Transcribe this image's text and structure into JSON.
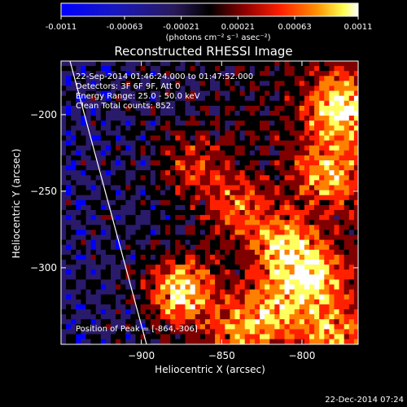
{
  "colorbar": {
    "tick_labels": [
      "-0.0011",
      "-0.00063",
      "-0.00021",
      "0.00021",
      "0.00063",
      "0.0011"
    ],
    "tick_values": [
      -0.0011,
      -0.00063,
      -0.00021,
      0.00021,
      0.00063,
      0.0011
    ],
    "range": [
      -0.0011,
      0.0011
    ],
    "units_label": "(photons cm⁻² s⁻¹ asec⁻²)",
    "colors": [
      "#0000ff",
      "#2a1a6a",
      "#000000",
      "#800000",
      "#ff2000",
      "#ff8000",
      "#ffff60",
      "#ffffff"
    ]
  },
  "chart_data": {
    "type": "heatmap",
    "title": "Reconstructed RHESSI Image",
    "xlabel": "Heliocentric X (arcsec)",
    "ylabel": "Heliocentric Y (arcsec)",
    "xlim": [
      -950,
      -765
    ],
    "ylim": [
      -350,
      -165
    ],
    "x_ticks": [
      -900,
      -850,
      -800
    ],
    "y_ticks": [
      -200,
      -250,
      -300
    ],
    "x_tick_labels": [
      "−900",
      "−850",
      "−800"
    ],
    "y_tick_labels": [
      "−200",
      "−250",
      "−300"
    ],
    "annotations": [
      "22-Sep-2014 01:46:24.000 to 01:47:52.000",
      "Detectors: 3F 6F 9F, Att 0",
      "Energy Range: 25.0 - 50.0 keV",
      "Clean    Total counts: 852."
    ],
    "peak_label": "Position of Peak = [-864,-306]",
    "peak_position": [
      -864,
      -306
    ]
  },
  "footer": {
    "timestamp": "22-Dec-2014 07:24"
  }
}
